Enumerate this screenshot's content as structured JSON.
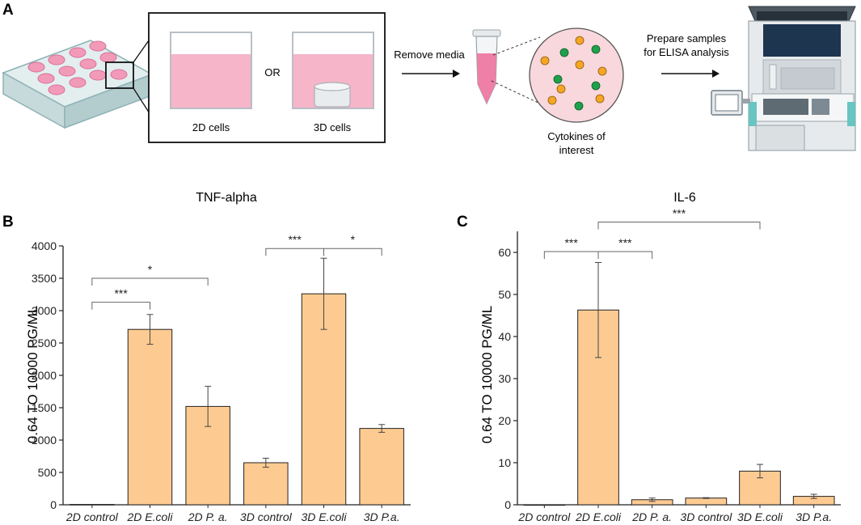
{
  "panel_a": {
    "letter": "A",
    "well_2d_label": "2D cells",
    "or_label": "OR",
    "well_3d_label": "3D cells",
    "step_remove": "Remove media",
    "cytokines_line1": "Cytokines of",
    "cytokines_line2": "interest",
    "prepare_line1": "Prepare samples",
    "prepare_line2": "for ELISA analysis"
  },
  "colors": {
    "bar_fill": "#FDCB92",
    "media_pink": "#F6B5C8",
    "bead_orange": "#F5A623",
    "bead_green": "#1FA04B",
    "plate_teal": "#CFE3E4"
  },
  "chart_data": [
    {
      "panel": "B",
      "type": "bar",
      "title": "TNF-alpha",
      "ylabel": "0.64 TO 10000 PG/ML",
      "xlabel": "",
      "ylim": [
        0,
        4000
      ],
      "yticks": [
        0,
        500,
        1000,
        1500,
        2000,
        2500,
        3000,
        3500,
        4000
      ],
      "categories": [
        "2D control",
        "2D E.coli",
        "2D P. a.",
        "3D control",
        "3D E.coli",
        "3D P.a."
      ],
      "values": [
        5,
        2710,
        1520,
        650,
        3260,
        1180
      ],
      "errors": [
        0,
        230,
        310,
        70,
        550,
        60
      ],
      "significance": [
        {
          "from": 0,
          "to": 1,
          "label": "***",
          "level": 3130
        },
        {
          "from": 0,
          "to": 2,
          "label": "*",
          "level": 3500
        },
        {
          "from": 3,
          "to": 4,
          "label": "***",
          "level": 3960
        },
        {
          "from": 4,
          "to": 5,
          "label": "*",
          "level": 3960
        }
      ]
    },
    {
      "panel": "C",
      "type": "bar",
      "title": "IL-6",
      "ylabel": "0.64 TO 10000 PG/ML",
      "xlabel": "",
      "ylim": [
        0,
        65
      ],
      "yticks": [
        0,
        10,
        20,
        30,
        40,
        50,
        60
      ],
      "categories": [
        "2D control",
        "2D E.coli",
        "2D P. a.",
        "3D control",
        "3D E.coli",
        "3D P.a."
      ],
      "values": [
        0,
        46.3,
        1.2,
        1.6,
        8.0,
        2.0
      ],
      "errors": [
        0,
        11.3,
        0.4,
        0.1,
        1.6,
        0.5
      ],
      "significance": [
        {
          "from": 0,
          "to": 1,
          "label": "***",
          "level": 60.2
        },
        {
          "from": 1,
          "to": 2,
          "label": "***",
          "level": 60.2
        },
        {
          "from": 1,
          "to": 4,
          "label": "***",
          "level": 67.2
        }
      ]
    }
  ]
}
